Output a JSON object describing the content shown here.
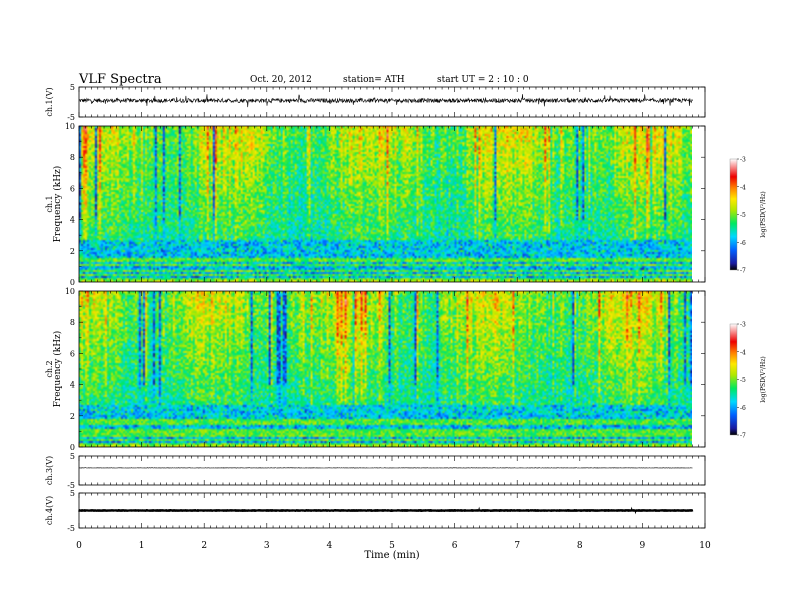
{
  "header": {
    "title": "VLF  Spectra",
    "date": "Oct. 20, 2012",
    "station": "station= ATH",
    "start": "start  UT =   2  : 10 : 0"
  },
  "chart_data": {
    "type": "heatmap",
    "xlabel": "Time  (min)",
    "xlim": [
      0,
      10
    ],
    "xticks": [
      "0",
      "1",
      "2",
      "3",
      "4",
      "5",
      "6",
      "7",
      "8",
      "9",
      "10"
    ],
    "data_end_min": 9.8,
    "panels": [
      {
        "kind": "waveform",
        "ylabel": "ch.1(V)",
        "ylim": [
          -5,
          5
        ],
        "yticks": [
          "5",
          "-5"
        ],
        "amplitude": "noisy, about 0.7 V with spikes"
      },
      {
        "kind": "spectrogram",
        "ylabel_top": "ch.1",
        "ylabel": "Frequency  (kHz)",
        "ylim": [
          0,
          10
        ],
        "yticks": [
          "0",
          "2",
          "4",
          "6",
          "8",
          "10"
        ]
      },
      {
        "kind": "spectrogram",
        "ylabel_top": "ch.2",
        "ylabel": "Frequency  (kHz)",
        "ylim": [
          0,
          10
        ],
        "yticks": [
          "0",
          "2",
          "4",
          "6",
          "8",
          "10"
        ]
      },
      {
        "kind": "waveform",
        "ylabel": "ch.3(V)",
        "ylim": [
          -5,
          5
        ],
        "yticks": [
          "5",
          "-5"
        ],
        "amplitude": "flat, about 0.05 V"
      },
      {
        "kind": "waveform",
        "ylabel": "ch.4(V)",
        "ylim": [
          -5,
          5
        ],
        "yticks": [
          "5",
          "-5"
        ],
        "amplitude": "steady band, about 0.3 V"
      }
    ],
    "colorbar": {
      "label": "log(PSD(V²/Hz)",
      "range": [
        -7,
        -3
      ],
      "ticks": [
        "-3",
        "-4",
        "-5",
        "-6",
        "-7"
      ],
      "colors": [
        "#000000",
        "#1a1aa0",
        "#0070ff",
        "#00d8ff",
        "#00e860",
        "#b0e800",
        "#ffe800",
        "#ff8000",
        "#ee0000",
        "#ffffff"
      ]
    }
  }
}
